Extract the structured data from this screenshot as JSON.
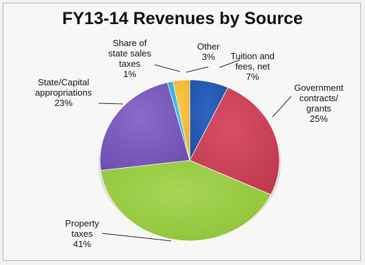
{
  "chart_data": {
    "type": "pie",
    "title": "FY13-14 Revenues by Source",
    "slices": [
      {
        "label_lines": [
          "Tuition and",
          "fees, net",
          "7%"
        ],
        "value": 7,
        "color": "#1f4fa0",
        "highlight": "#2e66c4"
      },
      {
        "label_lines": [
          "Government",
          "contracts/",
          "grants",
          "25%"
        ],
        "value": 25,
        "color": "#c0394f",
        "highlight": "#d84f66"
      },
      {
        "label_lines": [
          "Property",
          "taxes",
          "41%"
        ],
        "value": 41,
        "color": "#8fc23a",
        "highlight": "#a6d652"
      },
      {
        "label_lines": [
          "State/Capital",
          "appropriations",
          "23%"
        ],
        "value": 23,
        "color": "#6f4fb0",
        "highlight": "#8a6ccb"
      },
      {
        "label_lines": [
          "Share of",
          "state sales",
          "taxes",
          "1%"
        ],
        "value": 1,
        "color": "#2aa9d6",
        "highlight": "#4cc1e8"
      },
      {
        "label_lines": [
          "Other",
          "3%"
        ],
        "value": 3,
        "color": "#f3b32a",
        "highlight": "#f8c74f"
      }
    ],
    "legend": "none",
    "labels": "outside with leader lines"
  }
}
